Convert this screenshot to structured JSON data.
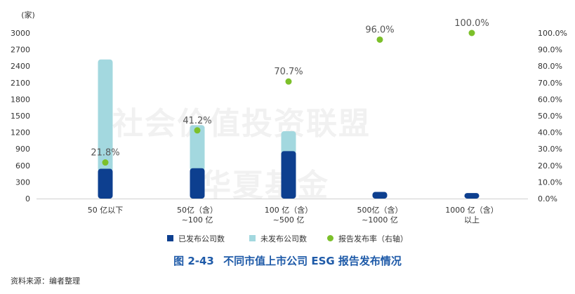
{
  "chart_data": {
    "type": "bar",
    "categories": [
      [
        "50 亿以下"
      ],
      [
        "50亿（含）",
        "~100 亿"
      ],
      [
        "100 亿（含）",
        "~500 亿"
      ],
      [
        "500亿（含）",
        "~1000 亿"
      ],
      [
        "1000 亿（含）",
        "以上"
      ]
    ],
    "series": [
      {
        "name": "已发布公司数",
        "values": [
          540,
          550,
          860,
          120,
          100
        ],
        "color": "#0d3f8f"
      },
      {
        "name": "未发布公司数",
        "values": [
          1980,
          780,
          360,
          0,
          0
        ],
        "color": "#a3d8df"
      },
      {
        "name": "报告发布率（右轴）",
        "values": [
          21.8,
          41.2,
          70.7,
          96.0,
          100.0
        ],
        "labels": [
          "21.8%",
          "41.2%",
          "70.7%",
          "96.0%",
          "100.0%"
        ],
        "color": "#7cc02a"
      }
    ],
    "y_left": {
      "unit": "(家)",
      "range": [
        0,
        3000
      ],
      "ticks": [
        "0",
        "300",
        "600",
        "900",
        "1200",
        "1500",
        "1800",
        "2100",
        "2400",
        "2700",
        "3000"
      ]
    },
    "y_right": {
      "range": [
        0,
        100
      ],
      "ticks": [
        "0.0%",
        "10.0%",
        "20.0%",
        "30.0%",
        "40.0%",
        "50.0%",
        "60.0%",
        "70.0%",
        "80.0%",
        "90.0%",
        "100.0%"
      ]
    },
    "legend": {
      "position": "bottom"
    },
    "grid": false
  },
  "caption": {
    "number": "图 2-43",
    "title": "不同市值上市公司 ESG 报告发布情况"
  },
  "source": "资料来源：编者整理",
  "watermark": [
    "社会价值投资联盟",
    "华夏基金"
  ]
}
